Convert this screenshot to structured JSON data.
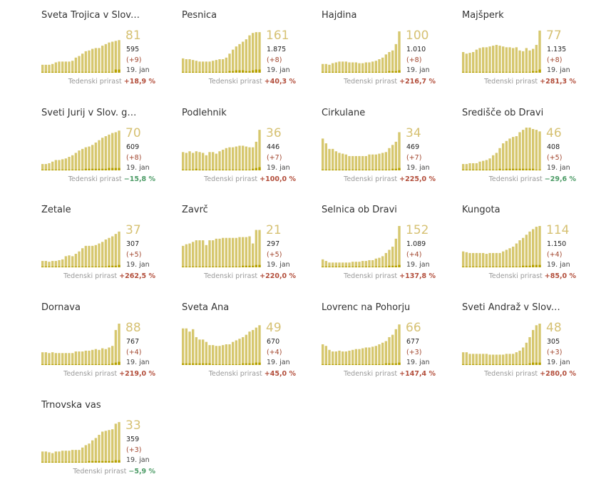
{
  "colors": {
    "bar": "#d6c76e",
    "dark": "#b6a100",
    "positive": "#b24d3a",
    "negative": "#4a9a64"
  },
  "chart_data": [
    {
      "type": "bar",
      "title": "Sveta Trojica v Slov....",
      "current": "81",
      "total": "595",
      "delta": "(+9)",
      "date": "19. jan",
      "growth_label": "Tedenski prirast",
      "growth": "+18,9 %",
      "growth_sign": "pos",
      "values": [
        10,
        10,
        10,
        11,
        13,
        14,
        14,
        14,
        14,
        15,
        19,
        21,
        24,
        27,
        28,
        30,
        31,
        31,
        34,
        36,
        38,
        39,
        40,
        41
      ],
      "dark": [
        1,
        1,
        1,
        1,
        1,
        1,
        1,
        1,
        1,
        1,
        1,
        1,
        1,
        1,
        1,
        1,
        1,
        1,
        1,
        1,
        1,
        1,
        4,
        4
      ]
    },
    {
      "type": "bar",
      "title": "Pesnica",
      "current": "161",
      "total": "1.875",
      "delta": "(+8)",
      "date": "19. jan",
      "growth_label": "Tedenski prirast",
      "growth": "+40,3 %",
      "growth_sign": "pos",
      "values": [
        18,
        17,
        17,
        16,
        15,
        14,
        14,
        14,
        14,
        15,
        16,
        17,
        17,
        19,
        24,
        29,
        33,
        36,
        39,
        42,
        47,
        50,
        51,
        51
      ],
      "dark": [
        1,
        1,
        1,
        1,
        1,
        1,
        1,
        1,
        1,
        1,
        1,
        1,
        1,
        1,
        2,
        2,
        3,
        3,
        3,
        2,
        2,
        3,
        4,
        4
      ]
    },
    {
      "type": "bar",
      "title": "Hajdina",
      "current": "100",
      "total": "1.010",
      "delta": "(+8)",
      "date": "19. jan",
      "growth_label": "Tedenski prirast",
      "growth": "+216,7 %",
      "growth_sign": "pos",
      "values": [
        11,
        11,
        10,
        12,
        13,
        14,
        14,
        14,
        13,
        13,
        13,
        12,
        12,
        13,
        13,
        14,
        15,
        17,
        19,
        23,
        26,
        28,
        36,
        52
      ],
      "dark": [
        1,
        1,
        1,
        1,
        1,
        1,
        1,
        1,
        1,
        1,
        1,
        1,
        1,
        1,
        1,
        1,
        1,
        1,
        1,
        1,
        2,
        2,
        2,
        3
      ]
    },
    {
      "type": "bar",
      "title": "Majšperk",
      "current": "77",
      "total": "1.135",
      "delta": "(+8)",
      "date": "19. jan",
      "growth_label": "Tedenski prirast",
      "growth": "+281,3 %",
      "growth_sign": "pos",
      "values": [
        26,
        24,
        25,
        26,
        29,
        31,
        32,
        32,
        33,
        34,
        35,
        34,
        33,
        32,
        32,
        31,
        32,
        28,
        27,
        31,
        28,
        30,
        35,
        53
      ],
      "dark": [
        1,
        1,
        1,
        1,
        1,
        1,
        1,
        1,
        1,
        1,
        1,
        1,
        1,
        1,
        1,
        1,
        1,
        1,
        1,
        1,
        1,
        2,
        2,
        4
      ]
    },
    {
      "type": "bar",
      "title": "Sveti Jurij v Slov. go...",
      "current": "70",
      "total": "609",
      "delta": "(+8)",
      "date": "19. jan",
      "growth_label": "Tedenski prirast",
      "growth": "−15,8 %",
      "growth_sign": "neg",
      "values": [
        8,
        8,
        9,
        11,
        13,
        13,
        14,
        15,
        17,
        19,
        22,
        25,
        27,
        29,
        30,
        32,
        35,
        38,
        41,
        43,
        45,
        47,
        48,
        50
      ],
      "dark": [
        1,
        1,
        1,
        1,
        1,
        1,
        1,
        1,
        1,
        1,
        1,
        1,
        1,
        2,
        2,
        2,
        2,
        2,
        2,
        2,
        3,
        3,
        3,
        3
      ]
    },
    {
      "type": "bar",
      "title": "Podlehnik",
      "current": "36",
      "total": "446",
      "delta": "(+7)",
      "date": "19. jan",
      "growth_label": "Tedenski prirast",
      "growth": "+100,0 %",
      "growth_sign": "pos",
      "values": [
        23,
        22,
        24,
        22,
        24,
        23,
        22,
        19,
        23,
        23,
        21,
        24,
        26,
        28,
        29,
        29,
        30,
        31,
        31,
        30,
        29,
        29,
        36,
        51
      ],
      "dark": [
        1,
        1,
        1,
        1,
        2,
        1,
        1,
        1,
        1,
        1,
        1,
        1,
        1,
        1,
        1,
        1,
        1,
        1,
        1,
        1,
        1,
        2,
        3,
        4
      ]
    },
    {
      "type": "bar",
      "title": "Cirkulane",
      "current": "34",
      "total": "469",
      "delta": "(+7)",
      "date": "19. jan",
      "growth_label": "Tedenski prirast",
      "growth": "+225,0 %",
      "growth_sign": "pos",
      "values": [
        40,
        34,
        27,
        27,
        24,
        22,
        21,
        20,
        18,
        18,
        18,
        18,
        18,
        18,
        20,
        20,
        20,
        21,
        22,
        23,
        28,
        32,
        36,
        48
      ],
      "dark": [
        1,
        1,
        1,
        1,
        1,
        1,
        1,
        1,
        1,
        1,
        1,
        1,
        1,
        1,
        1,
        1,
        1,
        1,
        1,
        1,
        1,
        2,
        2,
        3
      ]
    },
    {
      "type": "bar",
      "title": "Središče ob Dravi",
      "current": "46",
      "total": "408",
      "delta": "(+5)",
      "date": "19. jan",
      "growth_label": "Tedenski prirast",
      "growth": "−29,6 %",
      "growth_sign": "neg",
      "values": [
        8,
        8,
        9,
        9,
        9,
        11,
        12,
        13,
        15,
        19,
        22,
        28,
        34,
        37,
        40,
        42,
        43,
        48,
        51,
        54,
        54,
        52,
        51,
        49
      ],
      "dark": [
        1,
        1,
        1,
        1,
        1,
        1,
        1,
        1,
        1,
        1,
        1,
        2,
        1,
        2,
        2,
        2,
        2,
        2,
        2,
        2,
        2,
        2,
        1,
        1
      ]
    },
    {
      "type": "bar",
      "title": "Žetale",
      "current": "37",
      "total": "307",
      "delta": "(+5)",
      "date": "19. jan",
      "growth_label": "Tedenski prirast",
      "growth": "+262,5 %",
      "growth_sign": "pos",
      "values": [
        8,
        8,
        7,
        8,
        8,
        9,
        10,
        14,
        15,
        14,
        17,
        20,
        24,
        27,
        27,
        27,
        28,
        30,
        32,
        35,
        37,
        39,
        42,
        45
      ],
      "dark": [
        1,
        1,
        1,
        1,
        1,
        1,
        1,
        1,
        1,
        1,
        1,
        1,
        1,
        1,
        1,
        1,
        1,
        1,
        1,
        1,
        2,
        2,
        2,
        3
      ]
    },
    {
      "type": "bar",
      "title": "Zavrč",
      "current": "21",
      "total": "297",
      "delta": "(+5)",
      "date": "19. jan",
      "growth_label": "Tedenski prirast",
      "growth": "+220,0 %",
      "growth_sign": "pos",
      "values": [
        27,
        29,
        30,
        32,
        34,
        34,
        34,
        28,
        34,
        34,
        36,
        36,
        37,
        37,
        37,
        37,
        37,
        38,
        38,
        38,
        39,
        30,
        47,
        47
      ],
      "dark": [
        1,
        1,
        1,
        1,
        1,
        1,
        1,
        1,
        1,
        1,
        1,
        1,
        1,
        1,
        1,
        1,
        1,
        1,
        2,
        2,
        2,
        2,
        3,
        3
      ]
    },
    {
      "type": "bar",
      "title": "Selnica ob Dravi",
      "current": "152",
      "total": "1.089",
      "delta": "(+4)",
      "date": "19. jan",
      "growth_label": "Tedenski prirast",
      "growth": "+137,8 %",
      "growth_sign": "pos",
      "values": [
        10,
        8,
        6,
        6,
        6,
        6,
        6,
        6,
        6,
        7,
        7,
        7,
        8,
        8,
        9,
        9,
        11,
        12,
        14,
        18,
        22,
        26,
        36,
        52
      ],
      "dark": [
        1,
        1,
        1,
        1,
        1,
        1,
        1,
        1,
        1,
        1,
        1,
        1,
        1,
        1,
        1,
        1,
        1,
        1,
        1,
        1,
        2,
        2,
        2,
        3
      ]
    },
    {
      "type": "bar",
      "title": "Kungota",
      "current": "114",
      "total": "1.150",
      "delta": "(+4)",
      "date": "19. jan",
      "growth_label": "Tedenski prirast",
      "growth": "+85,0 %",
      "growth_sign": "pos",
      "values": [
        20,
        19,
        18,
        18,
        18,
        18,
        18,
        17,
        18,
        18,
        18,
        18,
        20,
        22,
        24,
        26,
        30,
        34,
        37,
        41,
        45,
        48,
        51,
        52
      ],
      "dark": [
        1,
        1,
        1,
        1,
        1,
        1,
        1,
        1,
        1,
        1,
        1,
        1,
        1,
        1,
        1,
        1,
        1,
        1,
        2,
        2,
        2,
        3,
        3,
        3
      ]
    },
    {
      "type": "bar",
      "title": "Dornava",
      "current": "88",
      "total": "767",
      "delta": "(+4)",
      "date": "19. jan",
      "growth_label": "Tedenski prirast",
      "growth": "+219,0 %",
      "growth_sign": "pos",
      "values": [
        16,
        16,
        15,
        16,
        15,
        15,
        15,
        15,
        15,
        15,
        17,
        17,
        17,
        18,
        18,
        19,
        20,
        19,
        21,
        20,
        22,
        24,
        44,
        52
      ],
      "dark": [
        1,
        1,
        1,
        1,
        1,
        1,
        1,
        1,
        1,
        1,
        1,
        1,
        1,
        1,
        1,
        1,
        1,
        1,
        1,
        1,
        1,
        2,
        3,
        4
      ]
    },
    {
      "type": "bar",
      "title": "Sveta Ana",
      "current": "49",
      "total": "670",
      "delta": "(+4)",
      "date": "19. jan",
      "growth_label": "Tedenski prirast",
      "growth": "+45,0 %",
      "growth_sign": "pos",
      "values": [
        46,
        46,
        42,
        45,
        35,
        32,
        32,
        29,
        25,
        25,
        24,
        24,
        25,
        26,
        26,
        29,
        31,
        33,
        35,
        38,
        42,
        44,
        47,
        50
      ],
      "dark": [
        2,
        2,
        2,
        2,
        2,
        2,
        2,
        2,
        2,
        1,
        1,
        1,
        1,
        1,
        1,
        1,
        1,
        1,
        2,
        2,
        2,
        2,
        3,
        3
      ]
    },
    {
      "type": "bar",
      "title": "Lovrenc na Pohorju",
      "current": "66",
      "total": "677",
      "delta": "(+3)",
      "date": "19. jan",
      "growth_label": "Tedenski prirast",
      "growth": "+147,4 %",
      "growth_sign": "pos",
      "values": [
        26,
        24,
        19,
        17,
        17,
        18,
        17,
        17,
        18,
        19,
        20,
        20,
        21,
        22,
        22,
        23,
        24,
        26,
        28,
        30,
        35,
        38,
        45,
        51
      ],
      "dark": [
        1,
        1,
        1,
        1,
        1,
        1,
        1,
        1,
        1,
        1,
        1,
        1,
        1,
        1,
        1,
        1,
        1,
        1,
        1,
        2,
        2,
        2,
        2,
        3
      ]
    },
    {
      "type": "bar",
      "title": "Sveti Andraž v Slov....",
      "current": "48",
      "total": "305",
      "delta": "(+3)",
      "date": "19. jan",
      "growth_label": "Tedenski prirast",
      "growth": "+280,0 %",
      "growth_sign": "pos",
      "values": [
        16,
        16,
        14,
        14,
        14,
        14,
        14,
        14,
        13,
        13,
        13,
        13,
        13,
        14,
        14,
        14,
        16,
        18,
        22,
        28,
        35,
        44,
        50,
        52
      ],
      "dark": [
        1,
        1,
        1,
        1,
        1,
        1,
        1,
        1,
        1,
        1,
        1,
        1,
        1,
        1,
        1,
        1,
        1,
        1,
        1,
        1,
        2,
        3,
        3,
        3
      ]
    },
    {
      "type": "bar",
      "title": "Trnovska vas",
      "current": "33",
      "total": "359",
      "delta": "(+3)",
      "date": "19. jan",
      "growth_label": "Tedenski prirast",
      "growth": "−5,9 %",
      "growth_sign": "neg",
      "values": [
        14,
        14,
        13,
        12,
        14,
        14,
        15,
        15,
        15,
        16,
        16,
        16,
        19,
        22,
        24,
        28,
        31,
        35,
        39,
        40,
        41,
        42,
        49,
        51
      ],
      "dark": [
        1,
        1,
        1,
        1,
        1,
        1,
        1,
        1,
        1,
        1,
        1,
        1,
        1,
        1,
        2,
        2,
        2,
        2,
        2,
        2,
        2,
        2,
        3,
        3
      ]
    }
  ]
}
